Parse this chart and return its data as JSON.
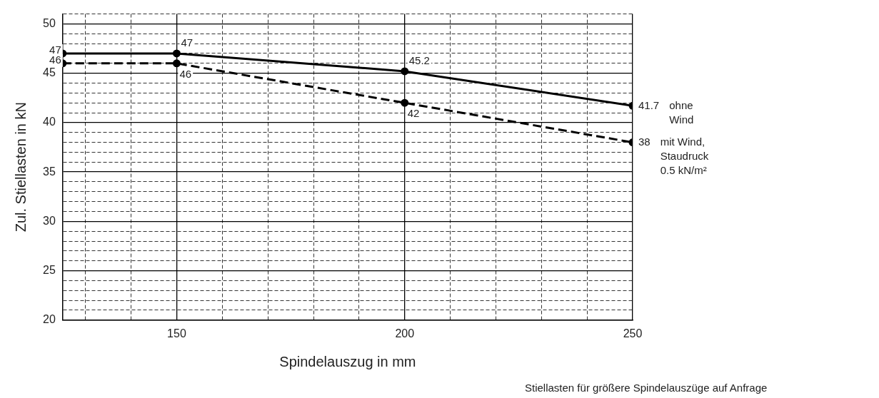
{
  "chart_data": {
    "type": "line",
    "xlabel": "Spindelauszug in mm",
    "ylabel": "Zul. Stiellasten in kN",
    "x": [
      125,
      150,
      200,
      250
    ],
    "series": [
      {
        "name": "ohne Wind",
        "color": "#000000",
        "values": [
          47,
          47,
          45.2,
          41.7
        ],
        "line_style": "solid"
      },
      {
        "name": "mit Wind, Staudruck 0.5 kN/m²",
        "color": "#000000",
        "values": [
          46,
          46,
          42,
          38
        ],
        "line_style": "dashed"
      }
    ],
    "xlim": [
      125,
      250
    ],
    "ylim": [
      20,
      51
    ],
    "xticks": [
      {
        "value": 130,
        "label": null
      },
      {
        "value": 140,
        "label": null
      },
      150,
      {
        "value": 160,
        "label": null
      },
      {
        "value": 170,
        "label": null
      },
      {
        "value": 180,
        "label": null
      },
      {
        "value": 190,
        "label": null
      },
      200,
      {
        "value": 210,
        "label": null
      },
      {
        "value": 220,
        "label": null
      },
      {
        "value": 230,
        "label": null
      },
      {
        "value": 240,
        "label": null
      },
      250
    ],
    "yticks": [
      20,
      {
        "value": 21,
        "label": null
      },
      {
        "value": 22,
        "label": null
      },
      {
        "value": 23,
        "label": null
      },
      {
        "value": 24,
        "label": null
      },
      25,
      {
        "value": 26,
        "label": null
      },
      {
        "value": 27,
        "label": null
      },
      {
        "value": 28,
        "label": null
      },
      {
        "value": 29,
        "label": null
      },
      30,
      {
        "value": 31,
        "label": null
      },
      {
        "value": 32,
        "label": null
      },
      {
        "value": 33,
        "label": null
      },
      {
        "value": 34,
        "label": null
      },
      35,
      {
        "value": 36,
        "label": null
      },
      {
        "value": 37,
        "label": null
      },
      {
        "value": 38,
        "label": null
      },
      {
        "value": 39,
        "label": null
      },
      40,
      {
        "value": 41,
        "label": null
      },
      {
        "value": 42,
        "label": null
      },
      {
        "value": 43,
        "label": null
      },
      {
        "value": 44,
        "label": null
      },
      45,
      {
        "value": 46,
        "label": null
      },
      {
        "value": 47,
        "label": null
      },
      {
        "value": 48,
        "label": null
      },
      {
        "value": 49,
        "label": null
      },
      50,
      {
        "value": 51,
        "label": null
      }
    ],
    "grid": true,
    "marker": "circle",
    "data_labels": true,
    "legend": false,
    "annotations": [
      "Stiellasten für größere Spindelauszüge auf Anfrage"
    ]
  }
}
